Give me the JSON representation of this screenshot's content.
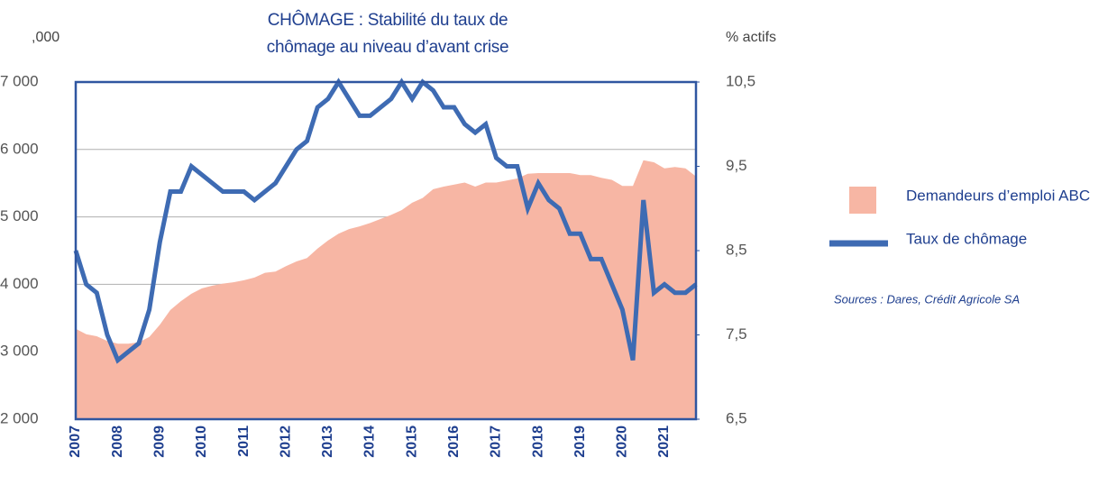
{
  "chart_data": {
    "type": "combo",
    "title": "CHÔMAGE : Stabilité du taux de chômage au niveau d’avant crise",
    "y_label": ",000",
    "y2_label": "% actifs",
    "source": "Sources : Dares, Crédit Agricole SA",
    "categories": [
      "2007",
      null,
      null,
      null,
      "2008",
      null,
      null,
      null,
      "2009",
      null,
      null,
      null,
      "2010",
      null,
      null,
      null,
      "2011",
      null,
      null,
      null,
      "2012",
      null,
      null,
      null,
      "2013",
      null,
      null,
      null,
      "2014",
      null,
      null,
      null,
      "2015",
      null,
      null,
      null,
      "2016",
      null,
      null,
      null,
      "2017",
      null,
      null,
      null,
      "2018",
      null,
      null,
      null,
      "2019",
      null,
      null,
      null,
      "2020",
      null,
      null,
      null,
      "2021",
      null,
      null,
      null
    ],
    "series": [
      {
        "name": "Demandeurs d’emploi ABC",
        "type": "area",
        "color": "#f7b6a4",
        "values": [
          3340,
          3260,
          3230,
          3160,
          3120,
          3120,
          3140,
          3220,
          3400,
          3620,
          3750,
          3860,
          3940,
          3980,
          4010,
          4030,
          4060,
          4100,
          4170,
          4190,
          4270,
          4340,
          4390,
          4530,
          4650,
          4750,
          4820,
          4860,
          4910,
          4970,
          5030,
          5100,
          5210,
          5280,
          5410,
          5450,
          5480,
          5510,
          5450,
          5510,
          5510,
          5540,
          5570,
          5640,
          5650,
          5650,
          5650,
          5650,
          5620,
          5620,
          5580,
          5550,
          5460,
          5460,
          5840,
          5810,
          5720,
          5740,
          5720,
          5600
        ]
      },
      {
        "name": "Taux de chômage",
        "type": "line",
        "color": "#3e6bb3",
        "axis": "y2",
        "values": [
          8.5,
          8.1,
          8.0,
          7.5,
          7.2,
          7.3,
          7.4,
          7.8,
          8.6,
          9.2,
          9.2,
          9.5,
          9.4,
          9.3,
          9.2,
          9.2,
          9.2,
          9.1,
          9.2,
          9.3,
          9.5,
          9.7,
          9.8,
          10.2,
          10.3,
          10.5,
          10.3,
          10.1,
          10.1,
          10.2,
          10.3,
          10.5,
          10.3,
          10.5,
          10.4,
          10.2,
          10.2,
          10.0,
          9.9,
          10.0,
          9.6,
          9.5,
          9.5,
          9.0,
          9.3,
          9.1,
          9.0,
          8.7,
          8.7,
          8.4,
          8.4,
          8.1,
          7.8,
          7.2,
          9.1,
          8.0,
          8.1,
          8.0,
          8.0,
          8.1
        ]
      }
    ],
    "ylim": [
      2000,
      7000
    ],
    "yticks": [
      {
        "value": 2000,
        "label": "2 000"
      },
      {
        "value": 3000,
        "label": "3 000"
      },
      {
        "value": 4000,
        "label": "4 000"
      },
      {
        "value": 5000,
        "label": "5 000"
      },
      {
        "value": 6000,
        "label": "6 000"
      },
      {
        "value": 7000,
        "label": "7 000"
      }
    ],
    "y2lim": [
      6.5,
      10.5
    ],
    "y2ticks": [
      {
        "value": 6.5,
        "label": "6,5"
      },
      {
        "value": 7.5,
        "label": "7,5"
      },
      {
        "value": 8.5,
        "label": "8,5"
      },
      {
        "value": 9.5,
        "label": "9,5"
      },
      {
        "value": 10.5,
        "label": "10,5"
      }
    ],
    "grid": true,
    "legend": "right"
  }
}
